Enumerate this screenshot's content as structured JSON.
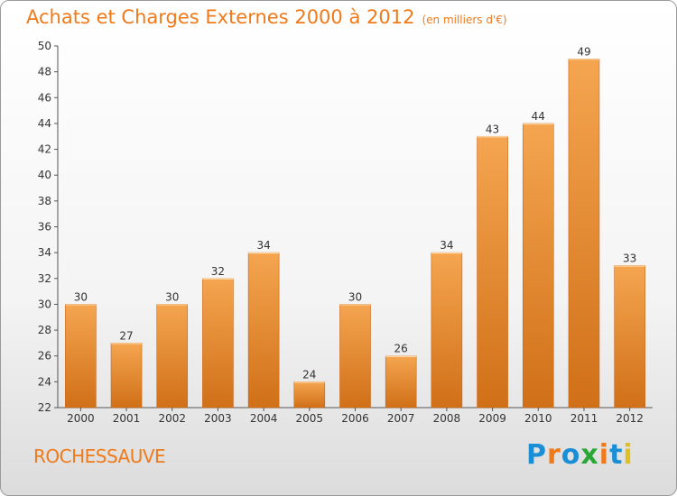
{
  "header": {
    "title": "Achats et Charges Externes 2000 à 2012",
    "unit": "(en milliers d'€)"
  },
  "footer": {
    "commune": "ROCHESSAUVE",
    "logo": "Proxiti",
    "logo_colors": [
      "#1a8fd6",
      "#f07a1a",
      "#1a8fd6",
      "#2aa836",
      "#f07a1a",
      "#1a8fd6",
      "#e0c020"
    ]
  },
  "colors": {
    "bar_light": "#f5a550",
    "bar_dark": "#d07018",
    "accent": "#f07a1a"
  },
  "chart_data": {
    "type": "bar",
    "title": "Achats et Charges Externes 2000 à 2012",
    "categories": [
      "2000",
      "2001",
      "2002",
      "2003",
      "2004",
      "2005",
      "2006",
      "2007",
      "2008",
      "2009",
      "2010",
      "2011",
      "2012"
    ],
    "values": [
      30,
      27,
      30,
      32,
      34,
      24,
      30,
      26,
      34,
      43,
      44,
      49,
      33
    ],
    "ylim": [
      22,
      50
    ],
    "yticks": [
      22,
      24,
      26,
      28,
      30,
      32,
      34,
      36,
      38,
      40,
      42,
      44,
      46,
      48,
      50
    ],
    "grid": false,
    "legend": "none"
  }
}
